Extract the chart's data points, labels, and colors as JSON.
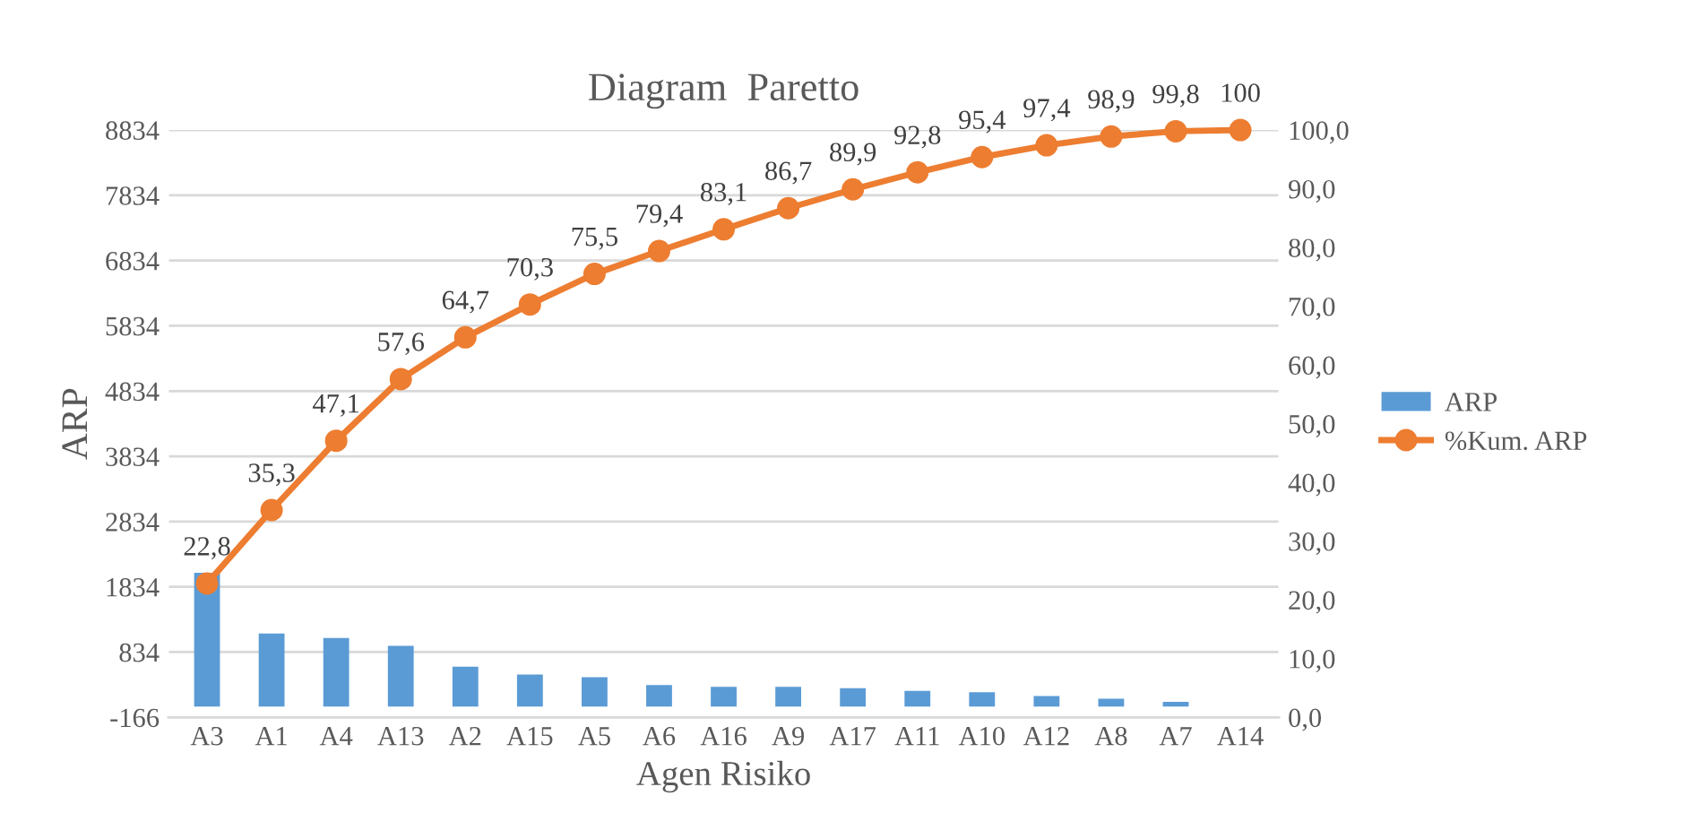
{
  "chart_data": {
    "type": "bar",
    "title": "Diagram  Paretto",
    "xlabel": "Agen Risiko",
    "ylabel": "ARP",
    "categories": [
      "A3",
      "A1",
      "A4",
      "A13",
      "A2",
      "A15",
      "A5",
      "A6",
      "A16",
      "A9",
      "A17",
      "A11",
      "A10",
      "A12",
      "A8",
      "A7",
      "A14"
    ],
    "series": [
      {
        "name": "ARP",
        "color": "#5b9bd5",
        "values": [
          2050,
          1120,
          1050,
          930,
          610,
          490,
          450,
          330,
          300,
          300,
          280,
          240,
          220,
          160,
          120,
          70,
          0
        ]
      },
      {
        "name": "%Kum. ARP",
        "type": "line",
        "axis": "y2",
        "color": "#ed7d31",
        "values": [
          22.8,
          35.3,
          47.1,
          57.6,
          64.7,
          70.3,
          75.5,
          79.4,
          83.1,
          86.7,
          89.9,
          92.8,
          95.4,
          97.4,
          98.9,
          99.8,
          100
        ],
        "value_labels": [
          "22,8",
          "35,3",
          "47,1",
          "57,6",
          "64,7",
          "70,3",
          "75,5",
          "79,4",
          "83,1",
          "86,7",
          "89,9",
          "92,8",
          "95,4",
          "97,4",
          "98,9",
          "99,8",
          "100"
        ]
      }
    ],
    "ylim": [
      -166,
      8834
    ],
    "yticks": [
      -166,
      834,
      1834,
      2834,
      3834,
      4834,
      5834,
      6834,
      7834,
      8834
    ],
    "y2lim": [
      0,
      100
    ],
    "y2ticks": [
      {
        "value": 0,
        "label": "0,0"
      },
      {
        "value": 10,
        "label": "10,0"
      },
      {
        "value": 20,
        "label": "20,0"
      },
      {
        "value": 30,
        "label": "30,0"
      },
      {
        "value": 40,
        "label": "40,0"
      },
      {
        "value": 50,
        "label": "50,0"
      },
      {
        "value": 60,
        "label": "60,0"
      },
      {
        "value": 70,
        "label": "70,0"
      },
      {
        "value": 80,
        "label": "80,0"
      },
      {
        "value": 90,
        "label": "90,0"
      },
      {
        "value": 100,
        "label": "100,0"
      }
    ],
    "grid": "y",
    "legend": "right",
    "marker": "circle",
    "line_style": "solid"
  }
}
